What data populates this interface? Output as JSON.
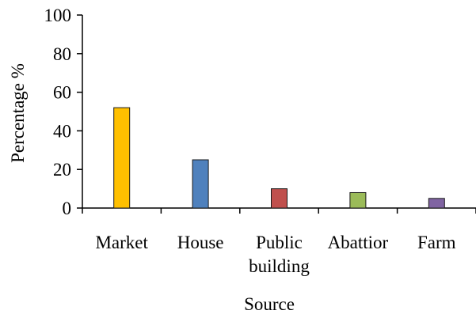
{
  "chart_data": {
    "type": "bar",
    "title": "",
    "xlabel": "Source",
    "ylabel": "Percentage %",
    "ylim": [
      0,
      100
    ],
    "yticks": [
      0,
      20,
      40,
      60,
      80,
      100
    ],
    "grid": false,
    "categories": [
      [
        "Market"
      ],
      [
        "House"
      ],
      [
        "Public",
        "building"
      ],
      [
        "Abattior"
      ],
      [
        "Farm"
      ]
    ],
    "values": [
      52,
      25,
      10,
      8,
      5
    ],
    "colors": [
      "#FFC000",
      "#4F81BD",
      "#C0504D",
      "#9BBB59",
      "#8064A2"
    ]
  }
}
